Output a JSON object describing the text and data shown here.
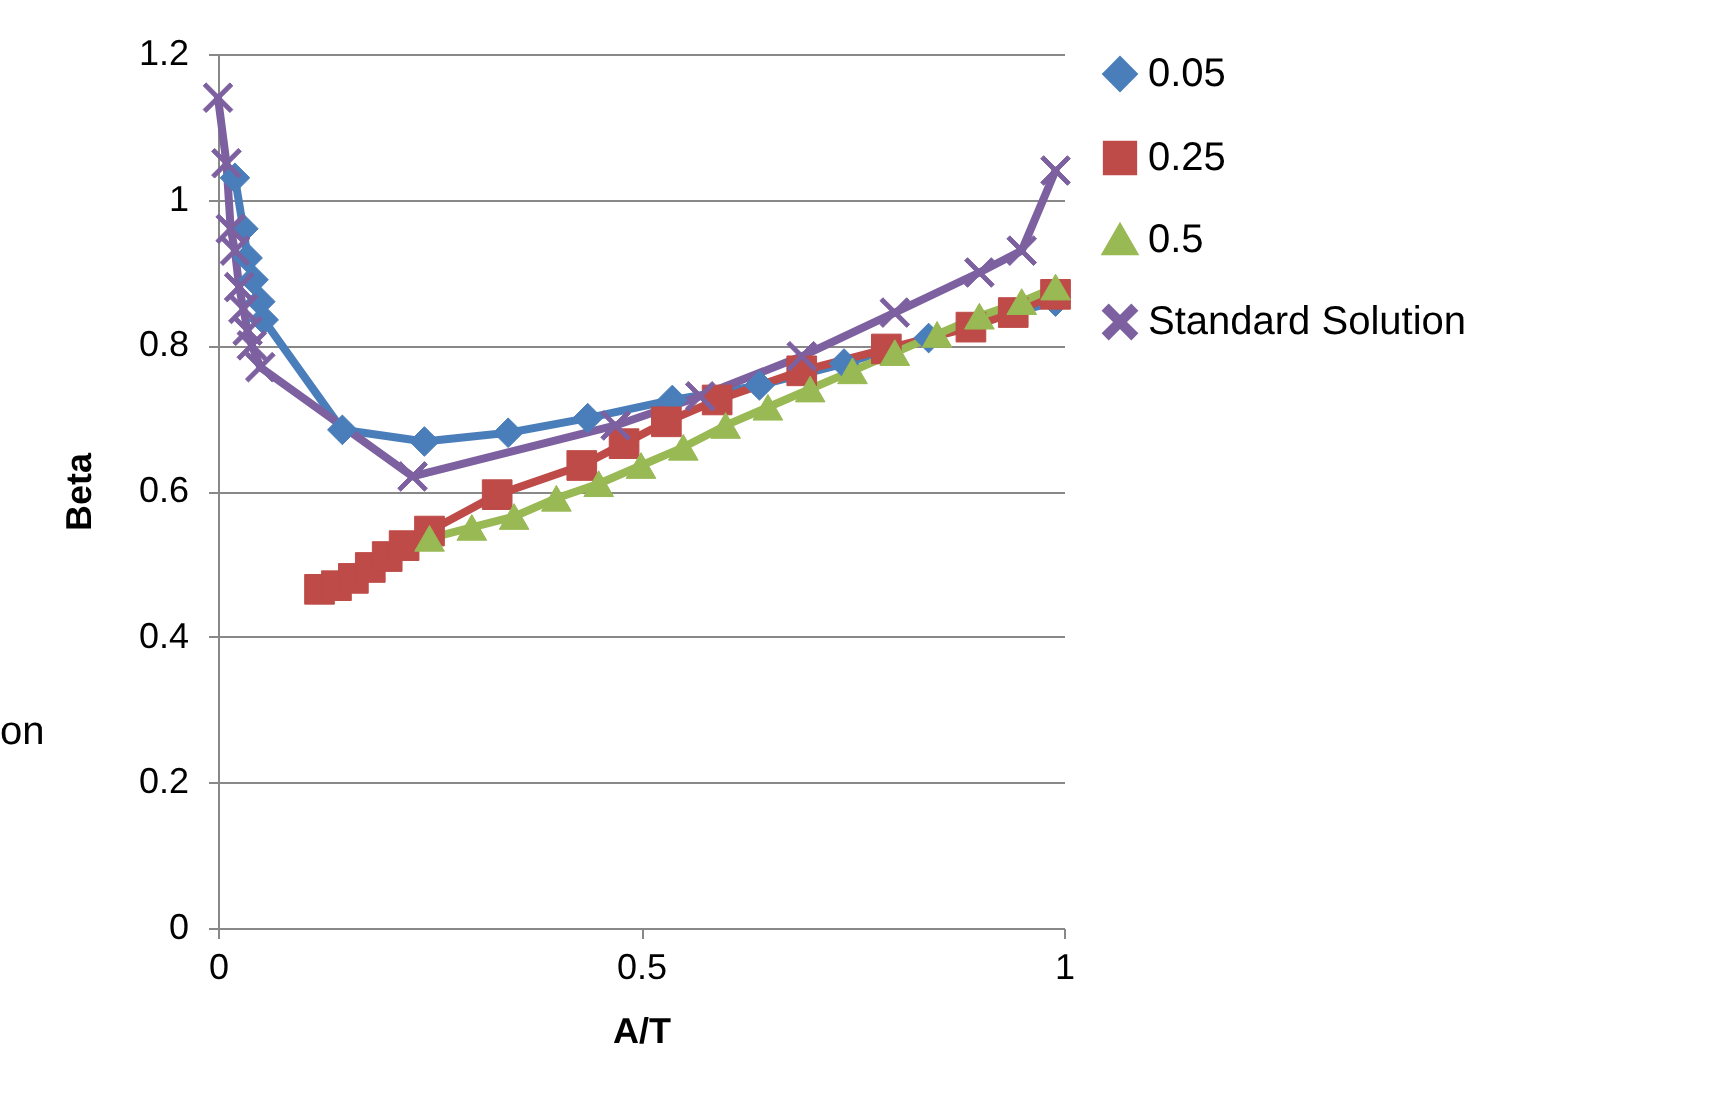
{
  "chart_data": {
    "type": "line",
    "xlabel": "A/T",
    "ylabel": "Beta",
    "xlim": [
      0,
      1
    ],
    "xticks": [
      0,
      0.5,
      1
    ],
    "ylim": [
      0,
      1.2
    ],
    "yticks": [
      0,
      0.2,
      0.4,
      0.6,
      0.8,
      1,
      1.2
    ],
    "grid": "y",
    "legend": "right",
    "annotations": [
      "on"
    ],
    "series": [
      {
        "name": "0.05",
        "color": "#4a7ebb",
        "marker": "diamond",
        "x": [
          0.02,
          0.03,
          0.035,
          0.042,
          0.05,
          0.054,
          0.147,
          0.244,
          0.343,
          0.437,
          0.537,
          0.64,
          0.74,
          0.84,
          0.94,
          0.99
        ],
        "values": [
          1.03,
          0.96,
          0.92,
          0.89,
          0.86,
          0.835,
          0.684,
          0.668,
          0.68,
          0.7,
          0.725,
          0.745,
          0.775,
          0.81,
          0.845,
          0.86
        ]
      },
      {
        "name": "0.25",
        "color": "#be4b48",
        "marker": "square",
        "x": [
          0.12,
          0.14,
          0.16,
          0.18,
          0.2,
          0.22,
          0.25,
          0.33,
          0.43,
          0.48,
          0.53,
          0.59,
          0.69,
          0.79,
          0.89,
          0.94,
          0.99
        ],
        "values": [
          0.465,
          0.47,
          0.48,
          0.495,
          0.51,
          0.525,
          0.545,
          0.595,
          0.635,
          0.665,
          0.695,
          0.725,
          0.765,
          0.795,
          0.825,
          0.845,
          0.87
        ]
      },
      {
        "name": "0.5",
        "color": "#98b954",
        "marker": "triangle",
        "x": [
          0.25,
          0.3,
          0.35,
          0.4,
          0.45,
          0.5,
          0.55,
          0.6,
          0.65,
          0.7,
          0.75,
          0.8,
          0.85,
          0.9,
          0.95,
          0.99
        ],
        "values": [
          0.535,
          0.55,
          0.565,
          0.59,
          0.61,
          0.635,
          0.66,
          0.69,
          0.715,
          0.74,
          0.765,
          0.79,
          0.815,
          0.84,
          0.86,
          0.88
        ]
      },
      {
        "name": "Standard Solution",
        "color": "#7d60a0",
        "marker": "cross",
        "x": [
          0,
          0.01,
          0.015,
          0.02,
          0.025,
          0.03,
          0.035,
          0.04,
          0.05,
          0.23,
          0.47,
          0.57,
          0.69,
          0.8,
          0.9,
          0.95,
          0.99
        ],
        "values": [
          1.14,
          1.05,
          0.96,
          0.93,
          0.88,
          0.85,
          0.82,
          0.8,
          0.77,
          0.62,
          0.69,
          0.73,
          0.785,
          0.845,
          0.9,
          0.93,
          1.04
        ]
      }
    ]
  }
}
